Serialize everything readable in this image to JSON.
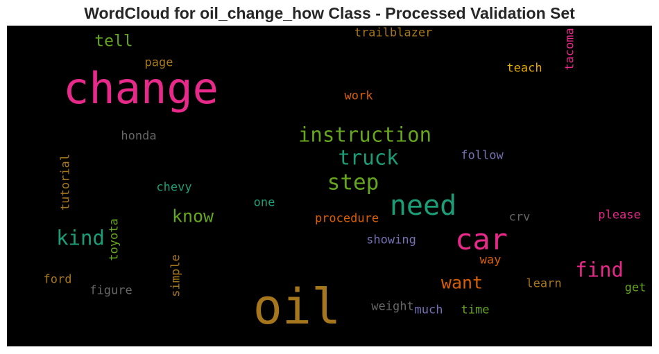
{
  "chart_data": {
    "type": "wordcloud",
    "title": "WordCloud for oil_change_how Class - Processed Validation Set",
    "background": "#000000",
    "words": [
      {
        "text": "change",
        "color": "#e7298a"
      },
      {
        "text": "oil",
        "color": "#a6761d"
      },
      {
        "text": "need",
        "color": "#1b9e77"
      },
      {
        "text": "car",
        "color": "#e7298a"
      },
      {
        "text": "step",
        "color": "#66a61e"
      },
      {
        "text": "instruction",
        "color": "#66a61e"
      },
      {
        "text": "truck",
        "color": "#1b9e77"
      },
      {
        "text": "kind",
        "color": "#1b9e77"
      },
      {
        "text": "find",
        "color": "#e7298a"
      },
      {
        "text": "know",
        "color": "#66a61e"
      },
      {
        "text": "want",
        "color": "#d95f02"
      },
      {
        "text": "tell",
        "color": "#66a61e"
      },
      {
        "text": "tutorial",
        "color": "#a6761d"
      },
      {
        "text": "toyota",
        "color": "#66a61e"
      },
      {
        "text": "simple",
        "color": "#a6761d"
      },
      {
        "text": "tacoma",
        "color": "#e7298a"
      },
      {
        "text": "trailblazer",
        "color": "#a6761d"
      },
      {
        "text": "teach",
        "color": "#e6ab02"
      },
      {
        "text": "page",
        "color": "#a6761d"
      },
      {
        "text": "work",
        "color": "#d95f02"
      },
      {
        "text": "honda",
        "color": "#666666"
      },
      {
        "text": "follow",
        "color": "#7570b3"
      },
      {
        "text": "chevy",
        "color": "#1b9e77"
      },
      {
        "text": "one",
        "color": "#1b9e77"
      },
      {
        "text": "procedure",
        "color": "#d95f02"
      },
      {
        "text": "crv",
        "color": "#666666"
      },
      {
        "text": "please",
        "color": "#e7298a"
      },
      {
        "text": "showing",
        "color": "#7570b3"
      },
      {
        "text": "way",
        "color": "#d95f02"
      },
      {
        "text": "learn",
        "color": "#a6761d"
      },
      {
        "text": "get",
        "color": "#66a61e"
      },
      {
        "text": "ford",
        "color": "#a6761d"
      },
      {
        "text": "figure",
        "color": "#666666"
      },
      {
        "text": "weight",
        "color": "#666666"
      },
      {
        "text": "much",
        "color": "#7570b3"
      },
      {
        "text": "time",
        "color": "#66a61e"
      }
    ]
  }
}
